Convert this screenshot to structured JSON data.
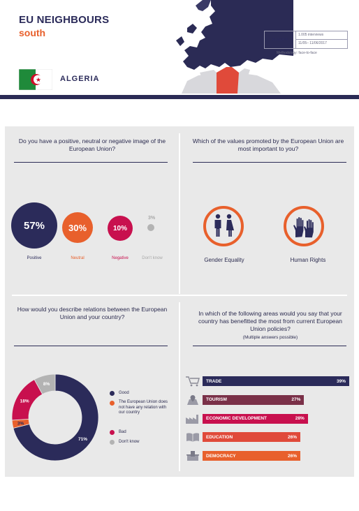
{
  "header": {
    "title_line1": "EU NEIGHBOURS",
    "title_line2": "south",
    "country": "ALGERIA",
    "info_country": "ALGERIA",
    "interviews": "1.005 interviews",
    "dates": "11/05– 11/06/2017",
    "methodology": "Methodology: face-to-face"
  },
  "colors": {
    "navy": "#2b2b5a",
    "orange": "#e8602c",
    "crimson": "#c8104e",
    "grey": "#b3b3b3",
    "panel": "#e9e9e9"
  },
  "q1": {
    "question": "Do you have a positive, neutral or negative image of the European Union?",
    "items": [
      {
        "pct": "57%",
        "label": "Positive"
      },
      {
        "pct": "30%",
        "label": "Neutral"
      },
      {
        "pct": "10%",
        "label": "Negative"
      },
      {
        "pct": "3%",
        "label": "Don't know"
      }
    ]
  },
  "q2": {
    "question": "Which of the values promoted by the European Union are most important to you?",
    "items": [
      {
        "label": "Gender Equality",
        "icon": "gender-equality-icon"
      },
      {
        "label": "Human Rights",
        "icon": "raised-hands-icon"
      }
    ]
  },
  "q3": {
    "question": "How would you describe relations between the European Union and your country?",
    "legend": [
      {
        "label": "Good"
      },
      {
        "label": "The European Union does not have any relation with our country"
      },
      {
        "label": "Bad"
      },
      {
        "label": "Don't know"
      }
    ]
  },
  "q4": {
    "question": "In which of the following areas would you say that your country has benefitted the most from current European Union policies?",
    "note": "(Multiple answers possible)"
  },
  "chart_data": [
    {
      "type": "pie",
      "categories": [
        "Good",
        "The European Union does not have any relation with our country",
        "Bad",
        "Don't know"
      ],
      "values": [
        71,
        3,
        18,
        8
      ],
      "labels": [
        "71%",
        "3%",
        "18%",
        "8%"
      ],
      "colors": [
        "#2b2b5a",
        "#e8602c",
        "#c8104e",
        "#b3b3b3"
      ]
    },
    {
      "type": "bar",
      "categories": [
        "TRADE",
        "TOURISM",
        "ECONOMIC DEVELOPMENT",
        "EDUCATION",
        "DEMOCRACY"
      ],
      "values": [
        39,
        27,
        28,
        26,
        26
      ],
      "labels": [
        "39%",
        "27%",
        "28%",
        "26%",
        "26%"
      ],
      "icons": [
        "cart-icon",
        "map-pin-icon",
        "factory-icon",
        "book-icon",
        "ballot-box-icon"
      ],
      "colors": [
        "#2b2b5a",
        "#7a3048",
        "#c8104e",
        "#e04a3a",
        "#e8602c"
      ]
    }
  ]
}
